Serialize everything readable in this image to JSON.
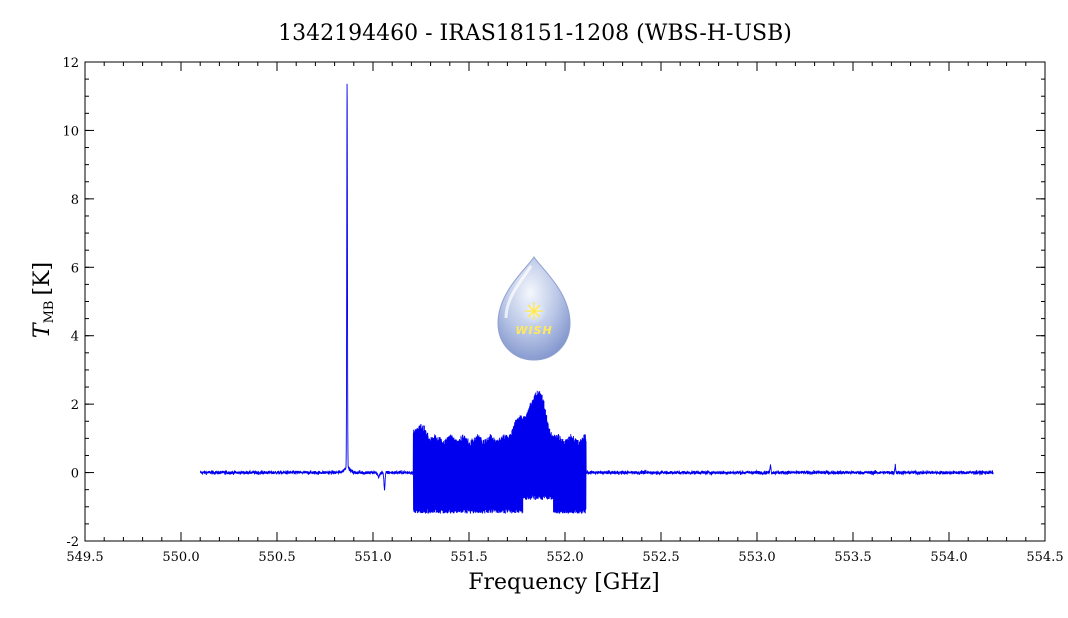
{
  "chart_data": {
    "type": "line",
    "title": "1342194460 - IRAS18151-1208 (WBS-H-USB)",
    "xlabel": "Frequency [GHz]",
    "ylabel_main": "T",
    "ylabel_sub": "MB",
    "ylabel_unit": "[K]",
    "xlim": [
      549.5,
      554.5
    ],
    "ylim": [
      -2,
      12
    ],
    "xticks": [
      "549.5",
      "550.0",
      "550.5",
      "551.0",
      "551.5",
      "552.0",
      "552.5",
      "553.0",
      "553.5",
      "554.0",
      "554.5"
    ],
    "yticks": [
      "-2",
      "0",
      "2",
      "4",
      "6",
      "8",
      "10",
      "12"
    ],
    "series": [
      {
        "color": "#0000ee",
        "x_range": [
          550.1,
          554.23
        ],
        "baseline_noise": 0.05,
        "features": [
          {
            "kind": "emission_line",
            "x": 550.865,
            "peak": 11.3
          },
          {
            "kind": "absorption_dip",
            "x": 551.06,
            "depth": -0.5
          },
          {
            "kind": "noisy_band",
            "x_start": 551.21,
            "x_end": 552.11,
            "upper_envelope": 1.3,
            "lower_envelope": -1.2
          },
          {
            "kind": "broad_bump",
            "x": 551.86,
            "peak": 2.4
          },
          {
            "kind": "small_line",
            "x": 553.07,
            "peak": 0.25
          },
          {
            "kind": "small_line",
            "x": 553.72,
            "peak": 0.22
          }
        ]
      }
    ],
    "grid": false
  },
  "logo": {
    "text": "WISH",
    "gradient_top": "#e8eef8",
    "gradient_bottom": "#8a9ed4",
    "star_color": "#ffe85a"
  }
}
